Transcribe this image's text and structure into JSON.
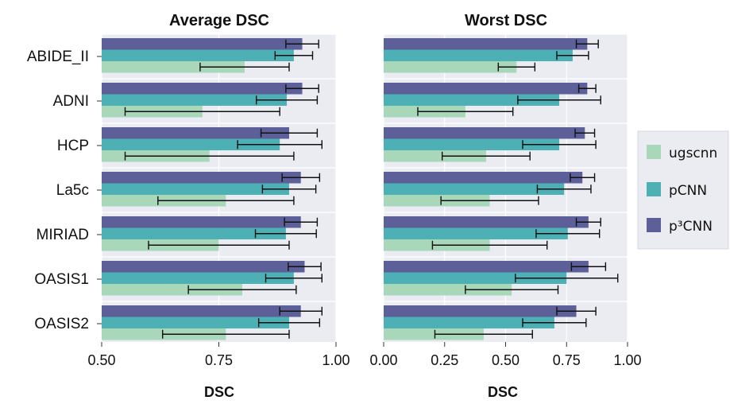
{
  "chart_data": [
    {
      "type": "bar",
      "orientation": "horizontal",
      "title": "Average DSC",
      "xlabel": "DSC",
      "xlim": [
        0.5,
        1.0
      ],
      "xticks": [
        "0.50",
        "0.75",
        "1.00"
      ],
      "grid": true,
      "categories": [
        "ABIDE_II",
        "ADNI",
        "HCP",
        "La5c",
        "MIRIAD",
        "OASIS1",
        "OASIS2"
      ],
      "series": [
        {
          "name": "ugscnn",
          "color": "#a8d8b9",
          "values": [
            0.805,
            0.715,
            0.73,
            0.765,
            0.75,
            0.8,
            0.765
          ],
          "error": [
            0.095,
            0.165,
            0.18,
            0.145,
            0.15,
            0.115,
            0.135
          ]
        },
        {
          "name": "pCNN",
          "color": "#4cb0b5",
          "values": [
            0.91,
            0.895,
            0.88,
            0.9,
            0.893,
            0.91,
            0.9
          ],
          "error": [
            0.04,
            0.065,
            0.09,
            0.057,
            0.065,
            0.06,
            0.065
          ]
        },
        {
          "name": "p³CNN",
          "color": "#5d5f99",
          "values": [
            0.928,
            0.928,
            0.9,
            0.925,
            0.925,
            0.933,
            0.925
          ],
          "error": [
            0.035,
            0.035,
            0.06,
            0.04,
            0.035,
            0.035,
            0.045
          ]
        }
      ]
    },
    {
      "type": "bar",
      "orientation": "horizontal",
      "title": "Worst DSC",
      "xlabel": "DSC",
      "xlim": [
        0.0,
        1.0
      ],
      "xticks": [
        "0.00",
        "0.25",
        "0.50",
        "0.75",
        "1.00"
      ],
      "grid": true,
      "categories": [
        "ABIDE_II",
        "ADNI",
        "HCP",
        "La5c",
        "MIRIAD",
        "OASIS1",
        "OASIS2"
      ],
      "series": [
        {
          "name": "ugscnn",
          "color": "#a8d8b9",
          "values": [
            0.545,
            0.335,
            0.42,
            0.435,
            0.435,
            0.525,
            0.41
          ],
          "error": [
            0.075,
            0.195,
            0.18,
            0.2,
            0.235,
            0.19,
            0.2
          ]
        },
        {
          "name": "pCNN",
          "color": "#4cb0b5",
          "values": [
            0.775,
            0.72,
            0.72,
            0.74,
            0.755,
            0.75,
            0.7
          ],
          "error": [
            0.065,
            0.17,
            0.15,
            0.11,
            0.13,
            0.21,
            0.13
          ]
        },
        {
          "name": "p³CNN",
          "color": "#5d5f99",
          "values": [
            0.835,
            0.835,
            0.825,
            0.815,
            0.84,
            0.84,
            0.79
          ],
          "error": [
            0.045,
            0.035,
            0.04,
            0.05,
            0.05,
            0.07,
            0.08
          ]
        }
      ]
    }
  ],
  "legend": {
    "placement": "right",
    "items": [
      {
        "label": "ugscnn",
        "color": "#a8d8b9"
      },
      {
        "label": "pCNN",
        "color": "#4cb0b5"
      },
      {
        "label": "p³CNN",
        "color": "#5d5f99"
      }
    ]
  },
  "colors": {
    "panel_bg": "#ebebf2",
    "grid": "#ffffff",
    "error_bar": "#111111"
  }
}
